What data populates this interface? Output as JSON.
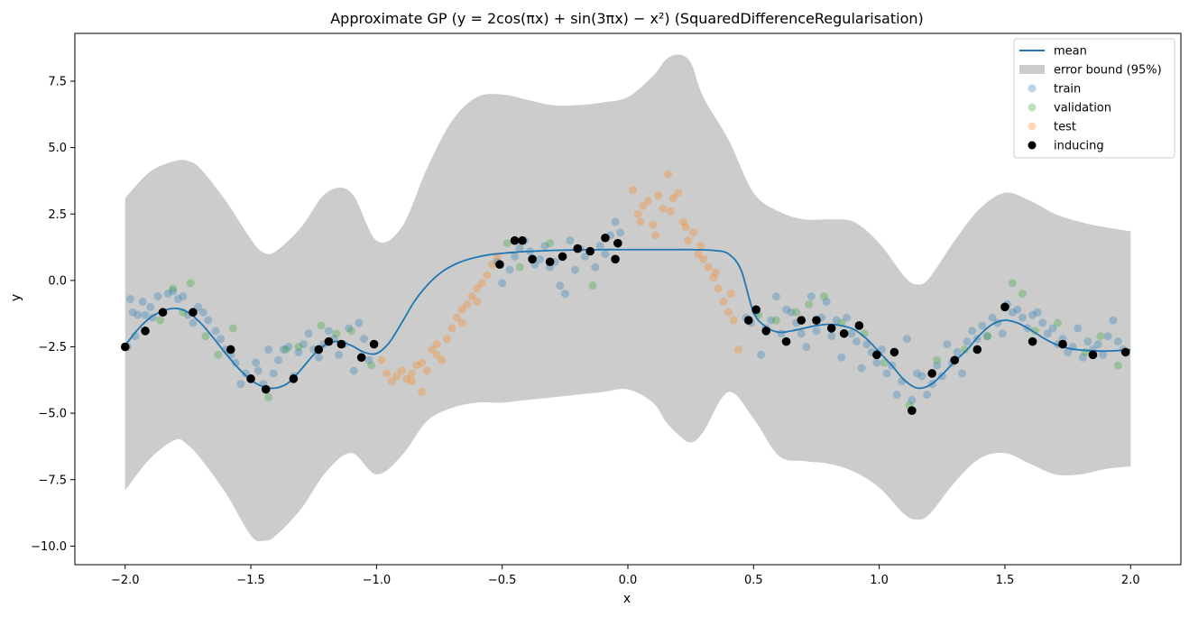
{
  "chart_data": {
    "type": "scatter",
    "title": "Approximate GP (y = 2cos(πx) + sin(3πx) − x²) (SquaredDifferenceRegularisation)",
    "xlabel": "x",
    "ylabel": "y",
    "xlim": [
      -2.2,
      2.2
    ],
    "ylim": [
      -10.7,
      9.3
    ],
    "x_ticks": [
      "−2.0",
      "−1.5",
      "−1.0",
      "−0.5",
      "0.0",
      "0.5",
      "1.0",
      "1.5",
      "2.0"
    ],
    "x_tick_values": [
      -2.0,
      -1.5,
      -1.0,
      -0.5,
      0.0,
      0.5,
      1.0,
      1.5,
      2.0
    ],
    "y_ticks": [
      "−10.0",
      "−7.5",
      "−5.0",
      "−2.5",
      "0.0",
      "2.5",
      "5.0",
      "7.5"
    ],
    "y_tick_values": [
      -10.0,
      -7.5,
      -5.0,
      -2.5,
      0.0,
      2.5,
      5.0,
      7.5
    ],
    "grid": false,
    "legend_placement": "top-right",
    "colors": {
      "mean": "#1f77b4",
      "band": "#cccccc",
      "train": "#1f77b4",
      "validation": "#2ca02c",
      "test": "#ff7f0e",
      "inducing": "#000000"
    },
    "legend": [
      {
        "key": "mean",
        "label": "mean",
        "kind": "line"
      },
      {
        "key": "band",
        "label": "error bound (95%)",
        "kind": "patch"
      },
      {
        "key": "train",
        "label": "train",
        "kind": "marker-faded"
      },
      {
        "key": "validation",
        "label": "validation",
        "kind": "marker-faded"
      },
      {
        "key": "test",
        "label": "test",
        "kind": "marker-faded"
      },
      {
        "key": "inducing",
        "label": "inducing",
        "kind": "marker"
      }
    ],
    "mean_curve": {
      "x": [
        -2.0,
        -1.95,
        -1.9,
        -1.85,
        -1.8,
        -1.75,
        -1.7,
        -1.65,
        -1.6,
        -1.55,
        -1.5,
        -1.45,
        -1.4,
        -1.35,
        -1.3,
        -1.25,
        -1.2,
        -1.15,
        -1.1,
        -1.05,
        -1.0,
        -0.95,
        -0.9,
        -0.85,
        -0.8,
        -0.75,
        -0.7,
        -0.65,
        -0.6,
        -0.55,
        -0.5,
        -0.45,
        -0.4,
        -0.35,
        -0.3,
        -0.25,
        -0.2,
        -0.15,
        -0.1,
        -0.05,
        0.0,
        0.05,
        0.1,
        0.15,
        0.2,
        0.25,
        0.3,
        0.35,
        0.4,
        0.45,
        0.5,
        0.55,
        0.6,
        0.65,
        0.7,
        0.75,
        0.8,
        0.85,
        0.9,
        0.95,
        1.0,
        1.05,
        1.1,
        1.15,
        1.2,
        1.25,
        1.3,
        1.35,
        1.4,
        1.45,
        1.5,
        1.55,
        1.6,
        1.65,
        1.7,
        1.75,
        1.8,
        1.85,
        1.9,
        1.95,
        2.0
      ],
      "y": [
        -2.45,
        -1.85,
        -1.4,
        -1.15,
        -1.05,
        -1.2,
        -1.6,
        -2.15,
        -2.75,
        -3.3,
        -3.75,
        -4.0,
        -4.05,
        -3.85,
        -3.35,
        -2.8,
        -2.4,
        -2.3,
        -2.45,
        -2.7,
        -2.75,
        -2.35,
        -1.6,
        -0.8,
        -0.2,
        0.25,
        0.55,
        0.75,
        0.88,
        0.97,
        1.02,
        1.06,
        1.09,
        1.11,
        1.13,
        1.14,
        1.15,
        1.15,
        1.16,
        1.16,
        1.16,
        1.16,
        1.16,
        1.16,
        1.16,
        1.16,
        1.15,
        1.12,
        1.0,
        0.4,
        -1.2,
        -1.75,
        -1.95,
        -1.9,
        -1.8,
        -1.7,
        -1.65,
        -1.7,
        -1.85,
        -2.2,
        -2.7,
        -3.2,
        -3.75,
        -4.05,
        -3.95,
        -3.55,
        -3.05,
        -2.6,
        -2.05,
        -1.65,
        -1.5,
        -1.6,
        -1.85,
        -2.15,
        -2.4,
        -2.55,
        -2.62,
        -2.65,
        -2.66,
        -2.64,
        -2.6
      ]
    },
    "error_band": {
      "x": [
        -2.0,
        -1.9,
        -1.8,
        -1.75,
        -1.7,
        -1.6,
        -1.5,
        -1.45,
        -1.4,
        -1.3,
        -1.2,
        -1.1,
        -1.0,
        -0.9,
        -0.8,
        -0.7,
        -0.6,
        -0.5,
        -0.4,
        -0.3,
        -0.2,
        -0.1,
        0.0,
        0.1,
        0.15,
        0.2,
        0.25,
        0.3,
        0.4,
        0.5,
        0.6,
        0.7,
        0.8,
        0.9,
        1.0,
        1.1,
        1.15,
        1.2,
        1.3,
        1.4,
        1.5,
        1.6,
        1.7,
        1.8,
        1.9,
        2.0
      ],
      "upper": [
        3.1,
        4.1,
        4.5,
        4.5,
        4.2,
        3.0,
        1.55,
        1.05,
        1.1,
        2.0,
        3.3,
        3.3,
        1.5,
        2.0,
        4.2,
        6.0,
        6.9,
        7.0,
        6.8,
        6.6,
        6.6,
        6.7,
        6.9,
        7.7,
        8.3,
        8.5,
        8.2,
        6.9,
        5.3,
        3.3,
        2.6,
        2.3,
        2.3,
        2.2,
        1.4,
        0.15,
        -0.15,
        0.1,
        1.5,
        2.7,
        3.3,
        3.0,
        2.5,
        2.2,
        2.0,
        1.85
      ],
      "lower": [
        -7.9,
        -6.7,
        -6.0,
        -6.2,
        -6.7,
        -8.0,
        -9.6,
        -9.8,
        -9.6,
        -8.6,
        -7.2,
        -6.5,
        -7.3,
        -6.6,
        -5.3,
        -4.8,
        -4.6,
        -4.6,
        -4.5,
        -4.4,
        -4.3,
        -4.2,
        -4.1,
        -4.6,
        -5.3,
        -5.8,
        -6.1,
        -5.7,
        -4.2,
        -5.2,
        -6.6,
        -6.8,
        -6.9,
        -7.2,
        -7.8,
        -8.8,
        -9.0,
        -8.8,
        -7.6,
        -6.7,
        -6.5,
        -6.9,
        -7.3,
        -7.3,
        -7.1,
        -7.0
      ]
    },
    "series": [
      {
        "name": "train",
        "x": [
          -1.99,
          -1.98,
          -1.97,
          -1.96,
          -1.95,
          -1.93,
          -1.92,
          -1.9,
          -1.89,
          -1.87,
          -1.85,
          -1.83,
          -1.81,
          -1.79,
          -1.77,
          -1.75,
          -1.73,
          -1.71,
          -1.69,
          -1.67,
          -1.64,
          -1.62,
          -1.6,
          -1.58,
          -1.56,
          -1.54,
          -1.52,
          -1.5,
          -1.48,
          -1.47,
          -1.45,
          -1.43,
          -1.41,
          -1.39,
          -1.37,
          -1.35,
          -1.33,
          -1.31,
          -1.29,
          -1.27,
          -1.25,
          -1.23,
          -1.21,
          -1.19,
          -1.17,
          -1.15,
          -1.13,
          -1.11,
          -1.09,
          -1.07,
          -1.05,
          -1.03,
          -0.52,
          -0.5,
          -0.47,
          -0.45,
          -0.43,
          -0.41,
          -0.39,
          -0.37,
          -0.35,
          -0.33,
          -0.31,
          -0.29,
          -0.27,
          -0.25,
          -0.23,
          -0.21,
          -0.19,
          -0.17,
          -0.15,
          -0.13,
          -0.11,
          -0.09,
          -0.07,
          -0.05,
          -0.03,
          0.47,
          0.49,
          0.51,
          0.53,
          0.55,
          0.57,
          0.59,
          0.61,
          0.63,
          0.65,
          0.67,
          0.69,
          0.71,
          0.73,
          0.75,
          0.77,
          0.79,
          0.81,
          0.83,
          0.85,
          0.87,
          0.89,
          0.91,
          0.93,
          0.95,
          0.97,
          0.99,
          1.01,
          1.03,
          1.05,
          1.07,
          1.09,
          1.11,
          1.13,
          1.15,
          1.17,
          1.19,
          1.21,
          1.23,
          1.25,
          1.27,
          1.29,
          1.31,
          1.33,
          1.35,
          1.37,
          1.39,
          1.41,
          1.43,
          1.45,
          1.47,
          1.49,
          1.51,
          1.53,
          1.55,
          1.57,
          1.59,
          1.61,
          1.63,
          1.65,
          1.67,
          1.69,
          1.71,
          1.73,
          1.75,
          1.77,
          1.79,
          1.81,
          1.83,
          1.85,
          1.87,
          1.89,
          1.91,
          1.93,
          1.95,
          1.97
        ],
        "y": [
          -2.5,
          -0.7,
          -1.2,
          -2.1,
          -1.3,
          -0.8,
          -1.3,
          -1.0,
          -1.4,
          -0.6,
          -1.2,
          -0.5,
          -0.4,
          -0.7,
          -0.6,
          -1.3,
          -1.6,
          -1.0,
          -1.2,
          -1.5,
          -1.9,
          -2.2,
          -2.6,
          -2.8,
          -3.1,
          -3.9,
          -3.5,
          -3.7,
          -3.1,
          -3.4,
          -3.9,
          -2.6,
          -3.5,
          -3.0,
          -2.6,
          -2.5,
          -3.6,
          -2.7,
          -2.4,
          -2.0,
          -2.6,
          -2.9,
          -2.4,
          -1.9,
          -2.2,
          -2.8,
          -2.4,
          -1.8,
          -3.4,
          -1.6,
          -2.2,
          -3.0,
          0.7,
          -0.1,
          0.4,
          0.9,
          1.2,
          1.5,
          1.1,
          0.6,
          0.8,
          1.3,
          0.5,
          0.7,
          -0.2,
          -0.5,
          1.5,
          0.4,
          1.2,
          0.9,
          1.1,
          0.5,
          1.3,
          1.0,
          1.7,
          2.2,
          1.8,
          -1.4,
          -1.6,
          -1.2,
          -2.8,
          -1.8,
          -1.5,
          -0.6,
          -2.0,
          -1.1,
          -1.2,
          -1.6,
          -2.0,
          -2.5,
          -0.6,
          -1.9,
          -1.4,
          -0.8,
          -2.1,
          -1.5,
          -2.9,
          -1.4,
          -2.0,
          -2.3,
          -3.3,
          -2.4,
          -2.7,
          -3.1,
          -2.6,
          -3.5,
          -3.2,
          -4.3,
          -3.8,
          -2.2,
          -4.5,
          -3.5,
          -3.6,
          -4.3,
          -3.9,
          -3.2,
          -3.6,
          -2.4,
          -3.1,
          -2.7,
          -3.5,
          -2.3,
          -1.9,
          -2.2,
          -1.7,
          -2.1,
          -1.4,
          -1.6,
          -2.0,
          -0.9,
          -1.2,
          -1.1,
          -1.4,
          -1.8,
          -1.3,
          -1.2,
          -1.6,
          -2.0,
          -1.8,
          -2.4,
          -2.2,
          -2.7,
          -2.5,
          -1.8,
          -2.9,
          -2.3,
          -2.6,
          -2.4,
          -2.8,
          -2.1,
          -1.5,
          -2.3,
          -2.6
        ]
      },
      {
        "name": "validation",
        "x": [
          -1.86,
          -1.81,
          -1.77,
          -1.74,
          -1.68,
          -1.63,
          -1.57,
          -1.43,
          -1.36,
          -1.31,
          -1.22,
          -1.16,
          -1.1,
          -1.02,
          -0.48,
          -0.43,
          -0.31,
          -0.14,
          0.52,
          0.59,
          0.67,
          0.72,
          0.78,
          0.85,
          0.94,
          1.02,
          1.12,
          1.23,
          1.34,
          1.43,
          1.53,
          1.57,
          1.62,
          1.71,
          1.82,
          1.88,
          1.95
        ],
        "y": [
          -1.5,
          -0.3,
          -1.2,
          -0.1,
          -2.1,
          -2.8,
          -1.8,
          -4.4,
          -2.6,
          -2.5,
          -1.7,
          -2.0,
          -1.9,
          -3.2,
          1.4,
          0.5,
          1.4,
          -0.2,
          -1.3,
          -1.5,
          -1.2,
          -0.9,
          -0.6,
          -1.6,
          -2.0,
          -3.1,
          -4.7,
          -3.0,
          -2.6,
          -2.1,
          -0.1,
          -0.5,
          -1.9,
          -1.6,
          -2.7,
          -2.1,
          -3.2
        ]
      },
      {
        "name": "test",
        "x": [
          -0.98,
          -0.96,
          -0.94,
          -0.92,
          -0.9,
          -0.88,
          -0.86,
          -0.84,
          -0.82,
          -0.8,
          -0.78,
          -0.76,
          -0.74,
          -0.72,
          -0.7,
          -0.68,
          -0.66,
          -0.64,
          -0.62,
          -0.6,
          -0.58,
          -0.56,
          -0.54,
          -0.52,
          0.02,
          0.04,
          0.06,
          0.08,
          0.1,
          0.12,
          0.14,
          0.16,
          0.18,
          0.2,
          0.22,
          0.24,
          0.26,
          0.28,
          0.3,
          0.32,
          0.34,
          0.36,
          0.38,
          0.4,
          0.42,
          0.44,
          -0.86,
          -0.82,
          -0.76,
          -0.66,
          -0.6,
          0.05,
          0.11,
          0.17,
          0.23,
          0.29,
          0.35,
          0.41
        ],
        "y": [
          -3.0,
          -3.5,
          -3.8,
          -3.6,
          -3.4,
          -3.7,
          -3.5,
          -3.2,
          -4.2,
          -3.4,
          -2.6,
          -2.4,
          -3.0,
          -2.2,
          -1.8,
          -1.4,
          -1.6,
          -0.9,
          -0.6,
          -0.3,
          -0.1,
          0.2,
          0.6,
          0.9,
          3.4,
          2.5,
          2.8,
          3.0,
          2.1,
          3.2,
          2.7,
          4.0,
          3.1,
          3.3,
          2.2,
          1.5,
          1.8,
          1.0,
          0.8,
          0.5,
          0.1,
          -0.3,
          -0.8,
          -1.2,
          -1.5,
          -2.6,
          -3.8,
          -3.1,
          -2.8,
          -1.1,
          -0.8,
          2.2,
          1.7,
          2.6,
          2.0,
          1.3,
          0.3,
          -0.5
        ]
      },
      {
        "name": "inducing",
        "x": [
          -2.0,
          -1.92,
          -1.85,
          -1.73,
          -1.58,
          -1.5,
          -1.44,
          -1.33,
          -1.23,
          -1.19,
          -1.14,
          -1.06,
          -1.01,
          -0.51,
          -0.45,
          -0.42,
          -0.38,
          -0.31,
          -0.26,
          -0.2,
          -0.15,
          -0.09,
          -0.05,
          -0.04,
          0.48,
          0.51,
          0.55,
          0.63,
          0.69,
          0.75,
          0.81,
          0.86,
          0.92,
          0.99,
          1.06,
          1.13,
          1.21,
          1.3,
          1.39,
          1.5,
          1.61,
          1.73,
          1.85,
          1.98
        ],
        "y": [
          -2.5,
          -1.9,
          -1.2,
          -1.2,
          -2.6,
          -3.7,
          -4.1,
          -3.7,
          -2.6,
          -2.3,
          -2.4,
          -2.9,
          -2.4,
          0.6,
          1.5,
          1.5,
          0.8,
          0.7,
          0.9,
          1.2,
          1.1,
          1.6,
          0.8,
          1.4,
          -1.5,
          -1.1,
          -1.9,
          -2.3,
          -1.5,
          -1.5,
          -1.8,
          -2.0,
          -1.7,
          -2.8,
          -2.7,
          -4.9,
          -3.5,
          -3.0,
          -2.6,
          -1.0,
          -2.3,
          -2.4,
          -2.8,
          -2.7
        ]
      }
    ]
  }
}
